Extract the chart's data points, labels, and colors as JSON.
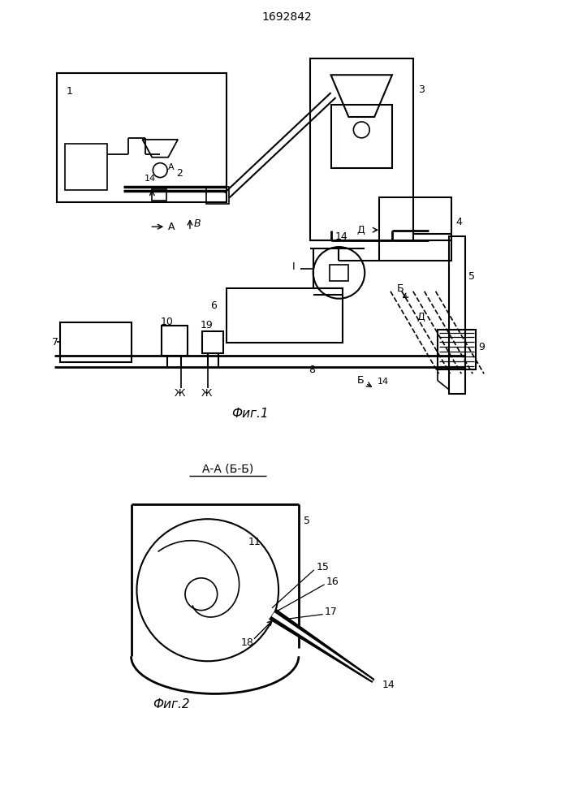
{
  "title": "1692842",
  "fig1_label": "Фиг.1",
  "fig2_label": "Фиг.2",
  "fig2_title": "А-А (Б-Б)",
  "bg_color": "#ffffff",
  "line_color": "#000000"
}
